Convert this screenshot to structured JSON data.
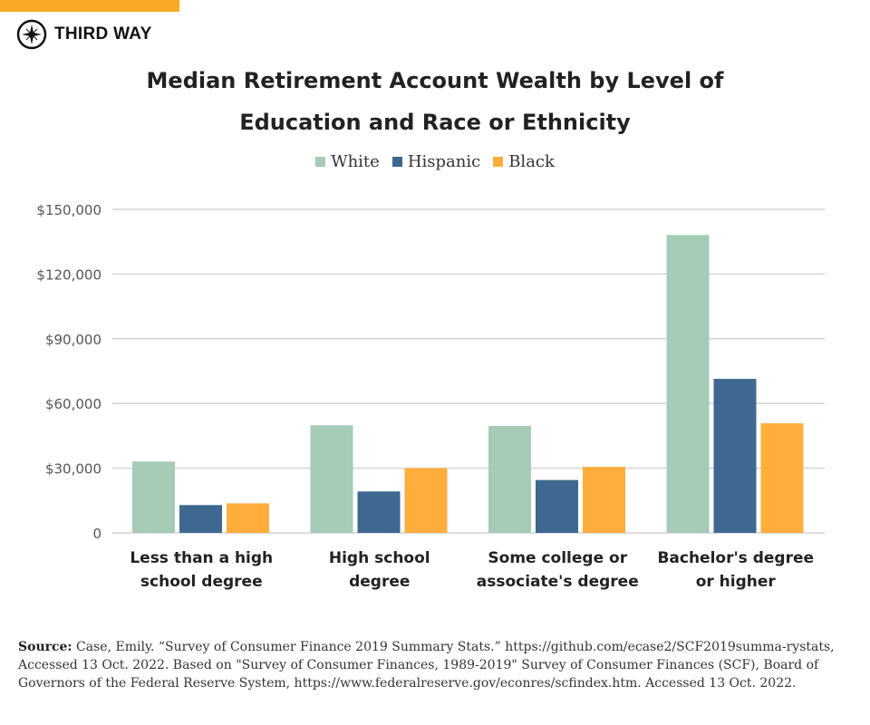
{
  "brand": {
    "name": "THIRD WAY",
    "accent": "#F9A825"
  },
  "chart_data": {
    "type": "bar",
    "title": "Median Retirement Account Wealth by Level of Education and Race or Ethnicity",
    "title_lines": [
      "Median Retirement Account Wealth by Level of",
      "Education and Race or Ethnicity"
    ],
    "categories": [
      "Less than a high school degree",
      "High school degree",
      "Some college or associate's degree",
      "Bachelor's degree or higher"
    ],
    "category_lines": [
      [
        "Less than a high",
        "school degree"
      ],
      [
        "High school",
        "degree"
      ],
      [
        "Some college or",
        "associate's degree"
      ],
      [
        "Bachelor's degree",
        "or higher"
      ]
    ],
    "series": [
      {
        "name": "White",
        "color": "#A6CBB6",
        "values": [
          33100,
          49900,
          49600,
          138100
        ]
      },
      {
        "name": "Hispanic",
        "color": "#3E688F",
        "values": [
          12900,
          19200,
          24500,
          71400
        ]
      },
      {
        "name": "Black",
        "color": "#FFAD3B",
        "values": [
          13700,
          30000,
          30600,
          50800
        ]
      }
    ],
    "ylim": [
      0,
      150000
    ],
    "yticks": [
      0,
      30000,
      60000,
      90000,
      120000,
      150000
    ],
    "ytick_labels": [
      "0",
      "$30,000",
      "$60,000",
      "$90,000",
      "$120,000",
      "$150,000"
    ],
    "xlabel": "",
    "ylabel": "",
    "grid": true,
    "legend_position": "top-center"
  },
  "source": {
    "label": "Source:",
    "text": " Case, Emily. “Survey of Consumer Finance 2019 Summary Stats.” https://github.com/ecase2/SCF2019summa-rystats, Accessed 13 Oct. 2022. Based on \"Survey of Consumer Finances, 1989-2019\" Survey of Consumer Finances (SCF), Board of Governors of the Federal Reserve System, https://www.federalreserve.gov/econres/scfindex.htm. Accessed 13 Oct. 2022."
  }
}
